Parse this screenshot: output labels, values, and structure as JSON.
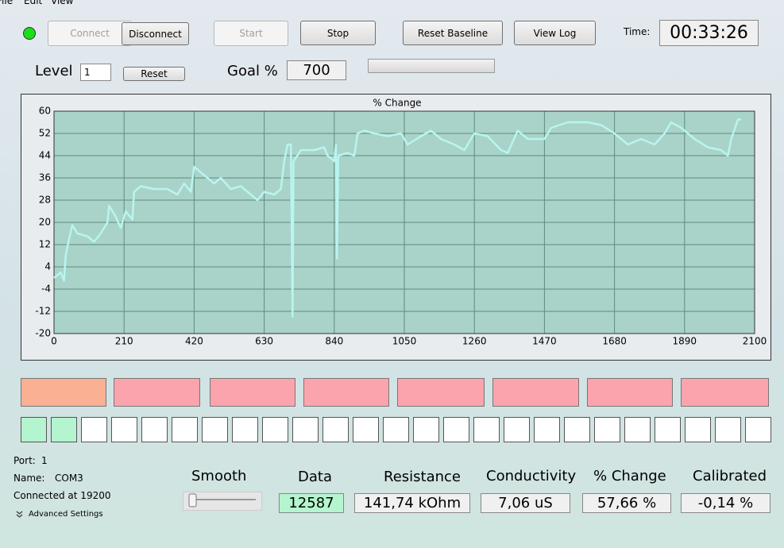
{
  "menu": {
    "file": "File",
    "edit": "Edit",
    "view": "View"
  },
  "toolbar": {
    "connect": "Connect",
    "disconnect": "Disconnect",
    "start": "Start",
    "stop": "Stop",
    "reset_baseline": "Reset Baseline",
    "view_log": "View Log",
    "time_label": "Time:",
    "time": "00:33:26"
  },
  "level": {
    "label": "Level",
    "value": "1",
    "reset": "Reset",
    "goal_label": "Goal %",
    "goal": "700"
  },
  "chart_data": {
    "type": "line",
    "title": "% Change",
    "x": [
      0,
      20,
      30,
      35,
      45,
      55,
      70,
      100,
      120,
      140,
      160,
      165,
      185,
      200,
      215,
      235,
      240,
      260,
      300,
      340,
      370,
      390,
      410,
      420,
      450,
      480,
      500,
      530,
      560,
      590,
      610,
      630,
      660,
      680,
      690,
      700,
      710,
      715,
      718,
      740,
      780,
      810,
      820,
      840,
      845,
      848,
      852,
      880,
      900,
      910,
      930,
      960,
      1000,
      1040,
      1060,
      1100,
      1130,
      1160,
      1200,
      1230,
      1260,
      1300,
      1340,
      1360,
      1390,
      1420,
      1470,
      1490,
      1540,
      1600,
      1640,
      1680,
      1720,
      1760,
      1800,
      1830,
      1850,
      1880,
      1920,
      1960,
      2000,
      2020,
      2030,
      2050,
      2060
    ],
    "series": [
      {
        "name": "% Change",
        "color": "#b8f5f0",
        "values": [
          0,
          2,
          -1,
          8,
          14,
          19,
          16,
          15,
          13,
          16,
          20,
          26,
          22,
          18,
          24,
          21,
          31,
          33,
          32,
          32,
          30,
          34,
          31,
          40,
          37,
          34,
          36,
          32,
          33,
          30,
          28,
          31,
          30,
          32,
          42,
          48,
          48,
          -14,
          42,
          46,
          46,
          47,
          44,
          42,
          48,
          7,
          44,
          45,
          44,
          52,
          53,
          52,
          51,
          52,
          48,
          51,
          53,
          50,
          48,
          46,
          52,
          51,
          46,
          45,
          53,
          50,
          50,
          54,
          56,
          56,
          55,
          52,
          48,
          50,
          48,
          52,
          56,
          54,
          50,
          47,
          46,
          44,
          50,
          57,
          57
        ]
      }
    ],
    "xlim": [
      0,
      2100
    ],
    "ylim": [
      -20,
      60
    ],
    "xticks": [
      0,
      210,
      420,
      630,
      840,
      1050,
      1260,
      1470,
      1680,
      1890,
      2100
    ],
    "yticks": [
      -20,
      -12,
      -4,
      4,
      12,
      20,
      28,
      36,
      44,
      52,
      60
    ],
    "grid": true
  },
  "port": {
    "port_label": "Port:",
    "port": "1",
    "name_label": "Name:",
    "name": "COM3",
    "connected": "Connected at 19200",
    "advanced": "Advanced Settings"
  },
  "readouts": {
    "smooth": "Smooth",
    "data_label": "Data",
    "data": "12587",
    "resistance_label": "Resistance",
    "resistance": "141,74 kOhm",
    "conductivity_label": "Conductivity",
    "conductivity": "7,06 uS",
    "change_label": "% Change",
    "change": "57,66 %",
    "calibrated_label": "Calibrated",
    "calibrated": "-0,14 %"
  }
}
